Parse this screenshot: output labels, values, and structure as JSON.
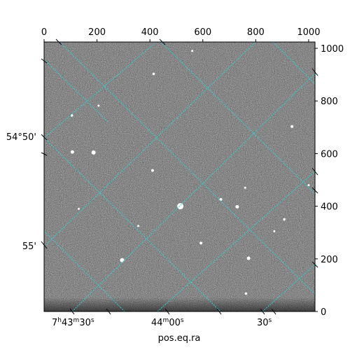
{
  "chart_data": {
    "type": "image",
    "image_style": "grayscale noise astronomical image",
    "grid": true,
    "grid_color": "#2ad4d4",
    "top_axis": {
      "ticks": [
        "0",
        "200",
        "400",
        "600",
        "800",
        "1000"
      ],
      "range": [
        0,
        1024
      ]
    },
    "right_axis": {
      "ticks": [
        "0",
        "200",
        "400",
        "600",
        "800",
        "1000"
      ],
      "range": [
        0,
        1024
      ]
    },
    "bottom_axis": {
      "label": "pos.eq.ra",
      "ticks": [
        {
          "h": "7",
          "m": "43",
          "s": "30"
        },
        {
          "h": "",
          "m": "44",
          "s": "00"
        },
        {
          "h": "",
          "m": "",
          "s": "30"
        }
      ]
    },
    "left_axis": {
      "ticks": [
        "54°50'",
        "55'"
      ]
    },
    "stars": [
      {
        "x": 515,
        "y": 400,
        "r": 4.5
      },
      {
        "x": 187,
        "y": 604,
        "r": 3
      },
      {
        "x": 107,
        "y": 606,
        "r": 2.5
      },
      {
        "x": 295,
        "y": 195,
        "r": 3
      },
      {
        "x": 410,
        "y": 536,
        "r": 2
      },
      {
        "x": 730,
        "y": 398,
        "r": 2.5
      },
      {
        "x": 668,
        "y": 426,
        "r": 2
      },
      {
        "x": 773,
        "y": 202,
        "r": 2.5
      },
      {
        "x": 593,
        "y": 260,
        "r": 2
      },
      {
        "x": 937,
        "y": 703,
        "r": 2
      },
      {
        "x": 105,
        "y": 745,
        "r": 1.8
      },
      {
        "x": 414,
        "y": 903,
        "r": 1.8
      },
      {
        "x": 763,
        "y": 68,
        "r": 1.8
      },
      {
        "x": 908,
        "y": 350,
        "r": 1.8
      },
      {
        "x": 870,
        "y": 305,
        "r": 1.5
      },
      {
        "x": 560,
        "y": 990,
        "r": 1.5
      },
      {
        "x": 206,
        "y": 782,
        "r": 1.5
      },
      {
        "x": 356,
        "y": 325,
        "r": 1.5
      },
      {
        "x": 760,
        "y": 470,
        "r": 1.5
      },
      {
        "x": 131,
        "y": 390,
        "r": 1.5
      },
      {
        "x": 1000,
        "y": 480,
        "r": 1.5
      }
    ]
  }
}
